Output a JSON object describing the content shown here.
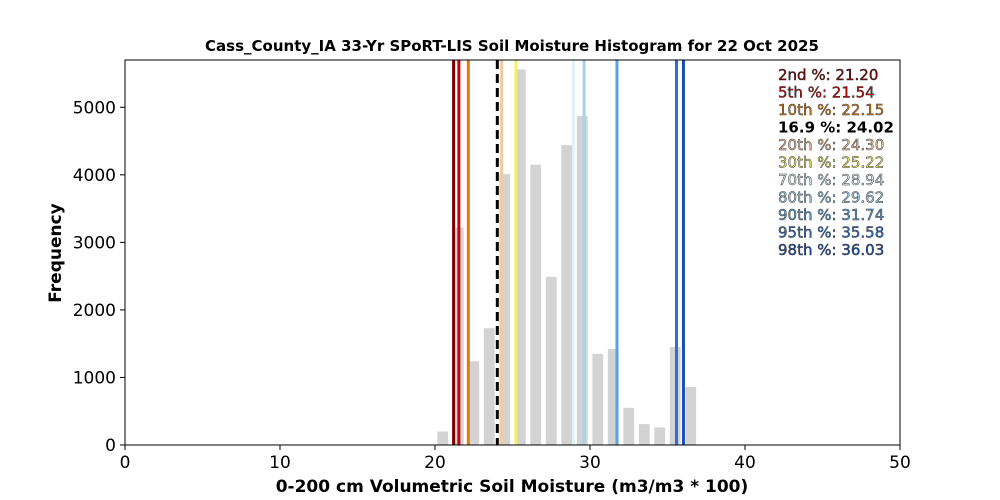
{
  "chart_data": {
    "type": "bar",
    "title": "Cass_County_IA 33-Yr SPoRT-LIS Soil Moisture Histogram for 22 Oct 2025",
    "xlabel": "0-200 cm Volumetric Soil Moisture (m3/m3 * 100)",
    "ylabel": "Frequency",
    "xlim": [
      0,
      50
    ],
    "ylim": [
      0,
      5700
    ],
    "xticks": [
      0,
      10,
      20,
      30,
      40,
      50
    ],
    "xtick_labels": [
      "0",
      "10",
      "20",
      "30",
      "40",
      "50"
    ],
    "yticks": [
      0,
      1000,
      2000,
      3000,
      4000,
      5000
    ],
    "ytick_labels": [
      "0",
      "1000",
      "2000",
      "3000",
      "4000",
      "5000"
    ],
    "grid": false,
    "bar_color": "#d3d3d3",
    "bar_width": 0.7,
    "bins": [
      {
        "x": 20.5,
        "value": 200
      },
      {
        "x": 21.5,
        "value": 3220
      },
      {
        "x": 22.5,
        "value": 1240
      },
      {
        "x": 23.5,
        "value": 1730
      },
      {
        "x": 24.5,
        "value": 4010
      },
      {
        "x": 25.5,
        "value": 5560
      },
      {
        "x": 26.5,
        "value": 4150
      },
      {
        "x": 27.5,
        "value": 2490
      },
      {
        "x": 28.5,
        "value": 4440
      },
      {
        "x": 29.5,
        "value": 4870
      },
      {
        "x": 30.5,
        "value": 1350
      },
      {
        "x": 31.5,
        "value": 1420
      },
      {
        "x": 32.5,
        "value": 550
      },
      {
        "x": 33.5,
        "value": 310
      },
      {
        "x": 34.5,
        "value": 260
      },
      {
        "x": 35.5,
        "value": 1450
      },
      {
        "x": 36.5,
        "value": 860
      }
    ],
    "percentiles": [
      {
        "label": "2nd %: 21.20",
        "value": 21.2,
        "color": "#7a0000",
        "style": "solid"
      },
      {
        "label": "5th %: 21.54",
        "value": 21.54,
        "color": "#cc0000",
        "style": "solid"
      },
      {
        "label": "10th %: 22.15",
        "value": 22.15,
        "color": "#e07b10",
        "style": "solid"
      },
      {
        "label": "16.9 %: 24.02",
        "value": 24.02,
        "color": "#000000",
        "style": "dashed"
      },
      {
        "label": "20th %: 24.30",
        "value": 24.3,
        "color": "#f3c9a0",
        "style": "solid"
      },
      {
        "label": "30th %: 25.22",
        "value": 25.22,
        "color": "#f7f066",
        "style": "solid"
      },
      {
        "label": "70th %: 28.94",
        "value": 28.94,
        "color": "#dff3fb",
        "style": "solid"
      },
      {
        "label": "80th %: 29.62",
        "value": 29.62,
        "color": "#a4d3ee",
        "style": "solid"
      },
      {
        "label": "90th %: 31.74",
        "value": 31.74,
        "color": "#5aa3e0",
        "style": "solid"
      },
      {
        "label": "95th %: 35.58",
        "value": 35.58,
        "color": "#2e6fcf",
        "style": "solid"
      },
      {
        "label": "98th %: 36.03",
        "value": 36.03,
        "color": "#1c4fb0",
        "style": "solid"
      }
    ],
    "legend_placement": "top-right"
  }
}
